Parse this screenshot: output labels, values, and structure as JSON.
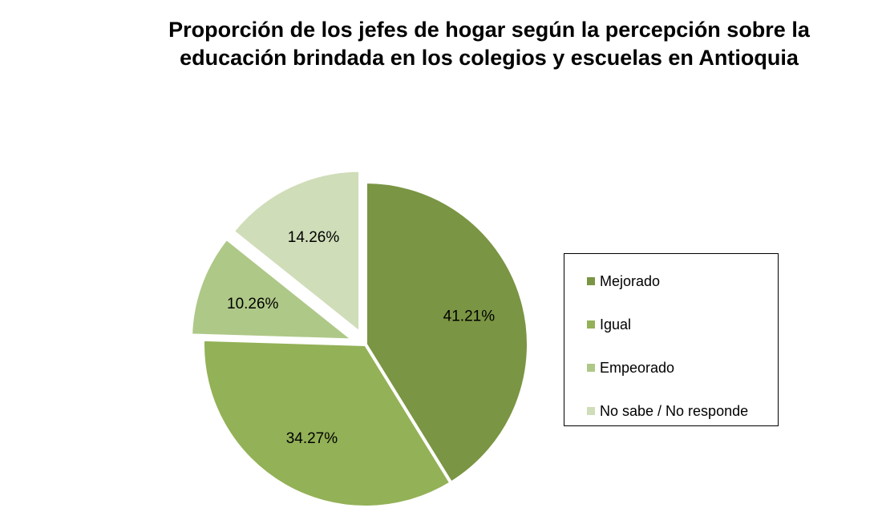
{
  "chart_data": {
    "type": "pie",
    "title": "Proporción de los jefes de hogar según la percepción sobre la educación brindada en los colegios y escuelas en Antioquia",
    "categories": [
      "Mejorado",
      "Igual",
      "Empeorado",
      "No sabe / No responde"
    ],
    "values": [
      41.21,
      34.27,
      10.26,
      14.26
    ],
    "labels": [
      "41.21%",
      "34.27%",
      "10.26%",
      "14.26%"
    ],
    "colors": [
      "#7a9543",
      "#93b156",
      "#aec887",
      "#cfddb8"
    ],
    "exploded": [
      false,
      false,
      true,
      true
    ],
    "legend_position": "right"
  }
}
